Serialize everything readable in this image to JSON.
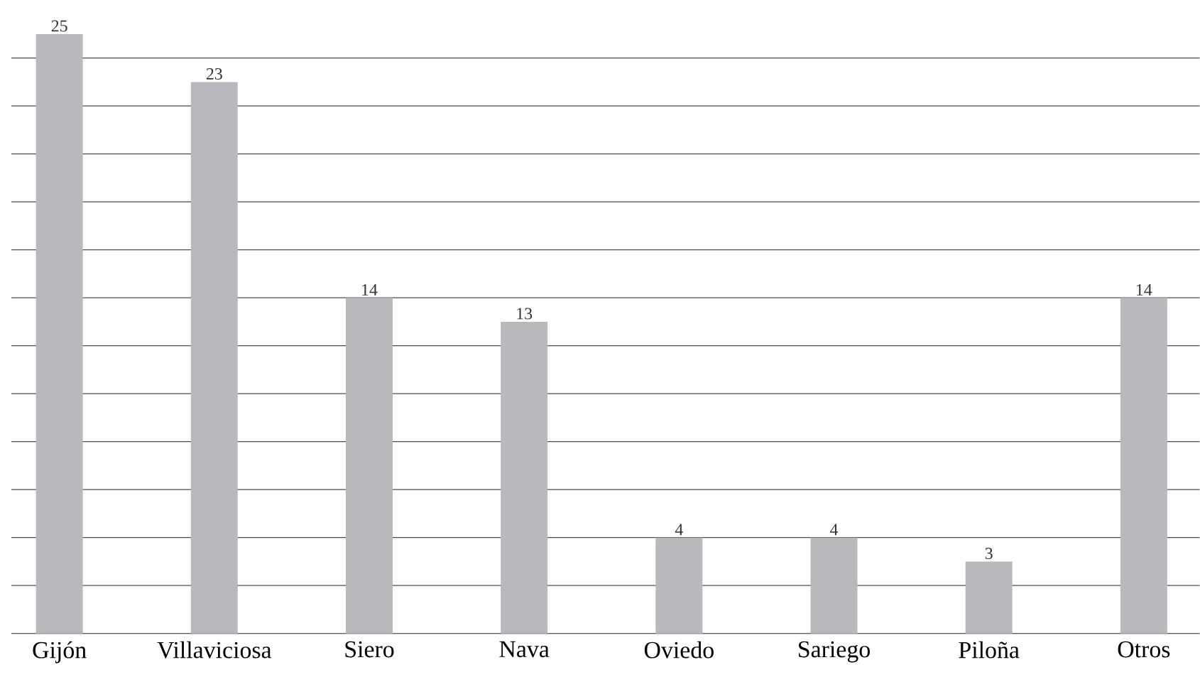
{
  "chart_data": {
    "type": "bar",
    "categories": [
      "Gijón",
      "Villaviciosa",
      "Siero",
      "Nava",
      "Oviedo",
      "Sariego",
      "Piloña",
      "Otros"
    ],
    "values": [
      25,
      23,
      14,
      13,
      4,
      4,
      3,
      14
    ],
    "color": "#b8b9bd",
    "data_labels": true,
    "grid": "y",
    "tick_labels": "x",
    "ylim": [
      0,
      25
    ]
  }
}
